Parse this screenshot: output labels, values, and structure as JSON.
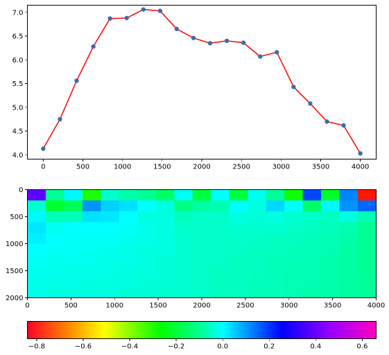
{
  "chart_data": [
    {
      "type": "line",
      "series": [
        {
          "x": [
            0,
            211,
            421,
            632,
            842,
            1053,
            1263,
            1474,
            1684,
            1895,
            2105,
            2316,
            2526,
            2737,
            2947,
            3158,
            3368,
            3579,
            3789,
            4000
          ],
          "y": [
            4.13,
            4.75,
            5.56,
            6.28,
            6.87,
            6.88,
            7.06,
            7.03,
            6.65,
            6.46,
            6.35,
            6.4,
            6.36,
            6.07,
            6.16,
            5.43,
            5.08,
            4.7,
            4.62,
            4.03
          ],
          "line_color": "#ff0000",
          "marker_color": "#3a6fa8"
        }
      ],
      "xlim": [
        -200,
        4200
      ],
      "ylim": [
        3.91,
        7.15
      ],
      "xticks": [
        0,
        500,
        1000,
        1500,
        2000,
        2500,
        3000,
        3500,
        4000
      ],
      "yticks": [
        4.0,
        4.5,
        5.0,
        5.5,
        6.0,
        6.5,
        7.0
      ],
      "xtick_labels": [
        "0",
        "500",
        "1000",
        "1500",
        "2000",
        "2500",
        "3000",
        "3500",
        "4000"
      ],
      "ytick_labels": [
        "4.0",
        "4.5",
        "5.0",
        "5.5",
        "6.0",
        "6.5",
        "7.0"
      ],
      "grid": false
    },
    {
      "type": "heatmap",
      "colormap": "gist_rainbow",
      "xlim": [
        0,
        4000
      ],
      "ylim": [
        2000,
        0
      ],
      "ncols": 19,
      "nrows": 10,
      "values": [
        [
          0.62,
          0.02,
          0.17,
          -0.21,
          0.09,
          0.05,
          0.02,
          -0.04,
          0.14,
          -0.09,
          0.16,
          -0.09,
          0.14,
          0.03,
          -0.19,
          0.4,
          -0.12,
          0.32,
          -0.81
        ],
        [
          0.1,
          -0.11,
          -0.06,
          0.3,
          0.22,
          0.2,
          0.16,
          0.12,
          0.0,
          0.04,
          0.06,
          0.16,
          0.12,
          0.21,
          0.16,
          -0.04,
          0.17,
          0.3,
          0.36
        ],
        [
          0.17,
          0.07,
          0.07,
          0.2,
          0.19,
          0.16,
          0.12,
          0.12,
          0.07,
          0.09,
          0.09,
          0.12,
          0.11,
          0.12,
          0.1,
          0.09,
          0.08,
          0.12,
          0.06
        ],
        [
          0.19,
          0.14,
          0.16,
          0.16,
          0.16,
          0.15,
          0.13,
          0.12,
          0.09,
          0.09,
          0.09,
          0.1,
          0.1,
          0.1,
          0.09,
          0.08,
          0.07,
          0.06,
          0.02
        ],
        [
          0.18,
          0.16,
          0.15,
          0.15,
          0.15,
          0.14,
          0.13,
          0.12,
          0.1,
          0.09,
          0.09,
          0.09,
          0.09,
          0.08,
          0.08,
          0.07,
          0.06,
          0.05,
          0.02
        ],
        [
          0.16,
          0.15,
          0.15,
          0.14,
          0.14,
          0.13,
          0.12,
          0.12,
          0.1,
          0.09,
          0.09,
          0.09,
          0.08,
          0.08,
          0.07,
          0.07,
          0.06,
          0.04,
          0.02
        ],
        [
          0.15,
          0.14,
          0.14,
          0.14,
          0.13,
          0.13,
          0.12,
          0.11,
          0.1,
          0.09,
          0.09,
          0.08,
          0.08,
          0.07,
          0.07,
          0.06,
          0.05,
          0.04,
          0.02
        ],
        [
          0.14,
          0.14,
          0.13,
          0.13,
          0.13,
          0.12,
          0.12,
          0.11,
          0.1,
          0.09,
          0.08,
          0.08,
          0.08,
          0.07,
          0.06,
          0.06,
          0.05,
          0.04,
          0.02
        ],
        [
          0.13,
          0.13,
          0.13,
          0.12,
          0.12,
          0.12,
          0.11,
          0.11,
          0.1,
          0.09,
          0.08,
          0.08,
          0.07,
          0.07,
          0.06,
          0.06,
          0.05,
          0.04,
          0.03
        ],
        [
          0.13,
          0.12,
          0.12,
          0.12,
          0.12,
          0.11,
          0.11,
          0.1,
          0.1,
          0.09,
          0.08,
          0.08,
          0.07,
          0.07,
          0.06,
          0.05,
          0.05,
          0.04,
          0.03
        ]
      ],
      "xticks": [
        0,
        500,
        1000,
        1500,
        2000,
        2500,
        3000,
        3500,
        4000
      ],
      "yticks": [
        0,
        500,
        1000,
        1500,
        2000
      ],
      "xtick_labels": [
        "0",
        "500",
        "1000",
        "1500",
        "2000",
        "2500",
        "3000",
        "3500",
        "4000"
      ],
      "ytick_labels": [
        "0",
        "500",
        "1000",
        "1500",
        "2000"
      ]
    },
    {
      "type": "colorbar",
      "colormap": "gist_rainbow",
      "orientation": "horizontal",
      "clim": [
        -0.84,
        0.66
      ],
      "ticks": [
        -0.8,
        -0.6,
        -0.4,
        -0.2,
        0.0,
        0.2,
        0.4,
        0.6
      ],
      "tick_labels": [
        "−0.8",
        "−0.6",
        "−0.4",
        "−0.2",
        "0.0",
        "0.2",
        "0.4",
        "0.6"
      ]
    }
  ]
}
